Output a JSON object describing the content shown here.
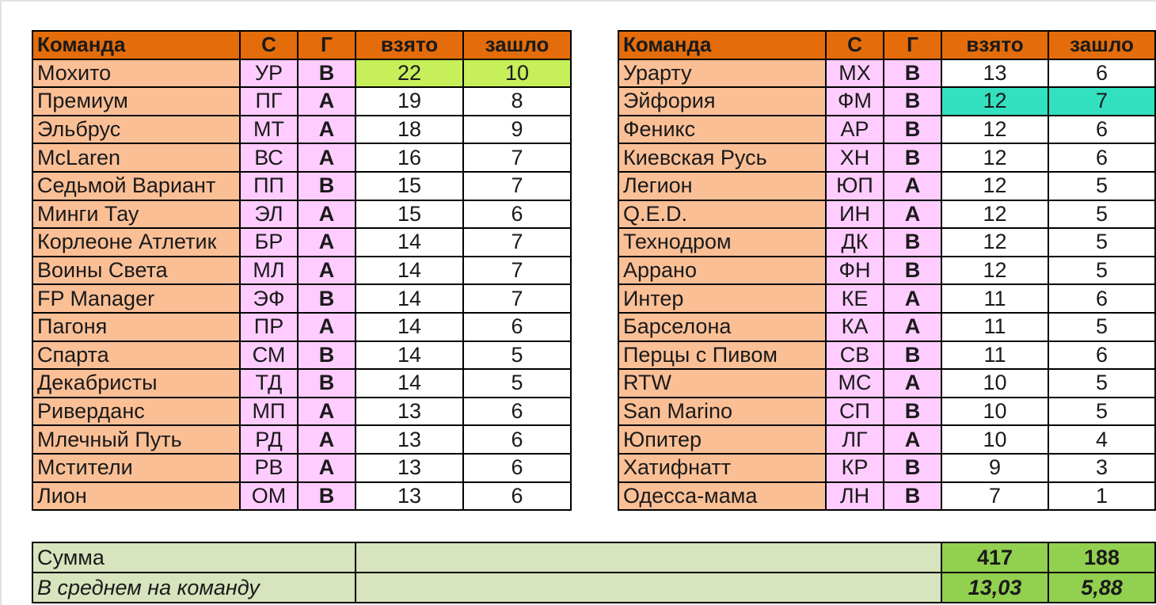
{
  "headers": {
    "team": "Команда",
    "c": "С",
    "g": "Г",
    "taken": "взято",
    "passed": "зашло"
  },
  "left_rows": [
    {
      "team": "Мохито",
      "c": "УР",
      "g": "В",
      "taken": "22",
      "passed": "10"
    },
    {
      "team": "Премиум",
      "c": "ПГ",
      "g": "А",
      "taken": "19",
      "passed": "8"
    },
    {
      "team": "Эльбрус",
      "c": "МТ",
      "g": "А",
      "taken": "18",
      "passed": "9"
    },
    {
      "team": "McLaren",
      "c": "ВС",
      "g": "А",
      "taken": "16",
      "passed": "7"
    },
    {
      "team": "Седьмой Вариант",
      "c": "ПП",
      "g": "В",
      "taken": "15",
      "passed": "7"
    },
    {
      "team": "Минги Тау",
      "c": "ЭЛ",
      "g": "А",
      "taken": "15",
      "passed": "6"
    },
    {
      "team": "Корлеоне Атлетик",
      "c": "БР",
      "g": "А",
      "taken": "14",
      "passed": "7"
    },
    {
      "team": "Воины Света",
      "c": "МЛ",
      "g": "А",
      "taken": "14",
      "passed": "7"
    },
    {
      "team": "FP Manager",
      "c": "ЭФ",
      "g": "В",
      "taken": "14",
      "passed": "7"
    },
    {
      "team": "Пагоня",
      "c": "ПР",
      "g": "А",
      "taken": "14",
      "passed": "6"
    },
    {
      "team": "Спарта",
      "c": "СМ",
      "g": "В",
      "taken": "14",
      "passed": "5"
    },
    {
      "team": "Декабристы",
      "c": "ТД",
      "g": "В",
      "taken": "14",
      "passed": "5"
    },
    {
      "team": "Риверданс",
      "c": "МП",
      "g": "А",
      "taken": "13",
      "passed": "6"
    },
    {
      "team": "Млечный Путь",
      "c": "РД",
      "g": "А",
      "taken": "13",
      "passed": "6"
    },
    {
      "team": "Мстители",
      "c": "РВ",
      "g": "А",
      "taken": "13",
      "passed": "6"
    },
    {
      "team": "Лион",
      "c": "ОМ",
      "g": "В",
      "taken": "13",
      "passed": "6"
    }
  ],
  "right_rows": [
    {
      "team": "Урарту",
      "c": "МХ",
      "g": "В",
      "taken": "13",
      "passed": "6"
    },
    {
      "team": "Эйфория",
      "c": "ФМ",
      "g": "В",
      "taken": "12",
      "passed": "7"
    },
    {
      "team": "Феникс",
      "c": "АР",
      "g": "В",
      "taken": "12",
      "passed": "6"
    },
    {
      "team": "Киевская Русь",
      "c": "ХН",
      "g": "В",
      "taken": "12",
      "passed": "6"
    },
    {
      "team": "Легион",
      "c": "ЮП",
      "g": "А",
      "taken": "12",
      "passed": "5"
    },
    {
      "team": "Q.E.D.",
      "c": "ИН",
      "g": "А",
      "taken": "12",
      "passed": "5"
    },
    {
      "team": "Технодром",
      "c": "ДК",
      "g": "В",
      "taken": "12",
      "passed": "5"
    },
    {
      "team": "Аррано",
      "c": "ФН",
      "g": "В",
      "taken": "12",
      "passed": "5"
    },
    {
      "team": "Интер",
      "c": "КЕ",
      "g": "А",
      "taken": "11",
      "passed": "6"
    },
    {
      "team": "Барселона",
      "c": "КА",
      "g": "А",
      "taken": "11",
      "passed": "5"
    },
    {
      "team": "Перцы с Пивом",
      "c": "СВ",
      "g": "В",
      "taken": "11",
      "passed": "6"
    },
    {
      "team": "RTW",
      "c": "МС",
      "g": "А",
      "taken": "10",
      "passed": "5"
    },
    {
      "team": "San Marino",
      "c": "СП",
      "g": "В",
      "taken": "10",
      "passed": "5"
    },
    {
      "team": "Юпитер",
      "c": "ЛГ",
      "g": "А",
      "taken": "10",
      "passed": "4"
    },
    {
      "team": "Хатифнатт",
      "c": "КР",
      "g": "В",
      "taken": "9",
      "passed": "3"
    },
    {
      "team": "Одесса-мама",
      "c": "ЛН",
      "g": "В",
      "taken": "7",
      "passed": "1"
    }
  ],
  "summary": {
    "sum_label": "Сумма",
    "sum_taken": "417",
    "sum_passed": "188",
    "avg_label": "В среднем на команду",
    "avg_taken": "13,03",
    "avg_passed": "5,88"
  },
  "highlights": {
    "left_first_row": "#c6ef5a",
    "right_second_row": "#33e0c0"
  }
}
